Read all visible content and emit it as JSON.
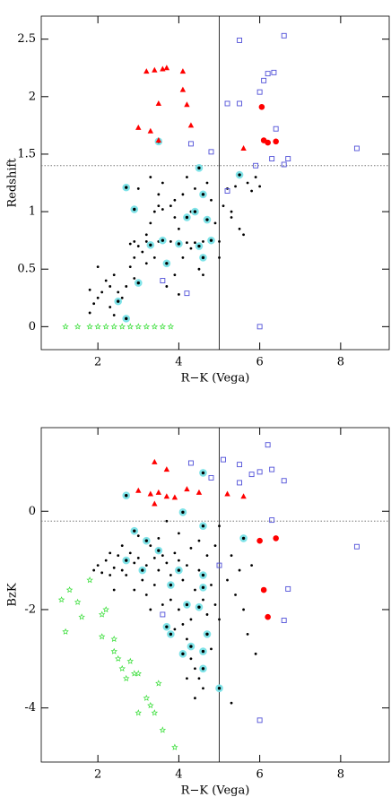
{
  "chart_data": [
    {
      "type": "scatter",
      "xlabel": "R−K (Vega)",
      "ylabel": "Redshift",
      "xlim": [
        0.6,
        9.2
      ],
      "ylim": [
        -0.2,
        2.7
      ],
      "xticks": [
        2,
        4,
        6,
        8
      ],
      "yticks": [
        0,
        0.5,
        1,
        1.5,
        2,
        2.5
      ],
      "vline": 5,
      "hline": 1.4,
      "series": [
        {
          "marker": "dot",
          "color": "#000000",
          "x": [
            1.8,
            1.9,
            2.0,
            2.1,
            1.8,
            2.2,
            2.3,
            2.0,
            2.4,
            2.5,
            2.6,
            2.3,
            2.8,
            2.9,
            3.0,
            2.8,
            3.1,
            3.2,
            3.3,
            3.4,
            3.5,
            3.6,
            3.8,
            3.9,
            3.0,
            3.3,
            3.6,
            4.0,
            4.2,
            4.4,
            4.6,
            4.8,
            5.0,
            3.8,
            3.5,
            3.2,
            2.9,
            4.3,
            4.1,
            3.9,
            4.5,
            3.7,
            4.2,
            4.4,
            4.8,
            5.1,
            5.3,
            5.5,
            5.6,
            5.2,
            5.4,
            5.7,
            5.9,
            6.0,
            5.8,
            5.3,
            4.9,
            4.7,
            4.3,
            3.2,
            2.7,
            2.4,
            2.9,
            3.4,
            4.0,
            4.6,
            5.0,
            3.9,
            4.1,
            3.5
          ],
          "y": [
            0.12,
            0.2,
            0.25,
            0.3,
            0.32,
            0.4,
            0.35,
            0.52,
            0.45,
            0.3,
            0.25,
            0.17,
            0.52,
            0.6,
            0.7,
            0.72,
            0.65,
            0.8,
            0.9,
            1.0,
            1.05,
            1.02,
            1.05,
            1.1,
            1.2,
            1.3,
            1.25,
            0.85,
            0.73,
            0.73,
            0.74,
            0.73,
            0.74,
            0.74,
            0.74,
            0.74,
            0.74,
            0.68,
            0.6,
            0.45,
            0.5,
            0.35,
            1.3,
            1.2,
            1.1,
            1.05,
            0.95,
            0.85,
            0.8,
            1.2,
            1.22,
            1.25,
            1.3,
            1.22,
            1.18,
            1.0,
            0.9,
            1.25,
            1.0,
            0.55,
            0.35,
            0.1,
            0.42,
            0.6,
            0.28,
            0.45,
            0.6,
            0.95,
            1.15,
            1.15
          ]
        },
        {
          "marker": "ring",
          "color": "#7fe3e8",
          "x": [
            2.7,
            2.9,
            3.5,
            4.5,
            5.5,
            4.6,
            4.4,
            4.2,
            4.7,
            3.6,
            3.3,
            4.0,
            4.8,
            3.7,
            4.6,
            2.5,
            2.7,
            3.0,
            4.5
          ],
          "y": [
            1.21,
            1.02,
            1.61,
            1.38,
            1.32,
            1.15,
            1.0,
            0.95,
            0.93,
            0.75,
            0.71,
            0.72,
            0.75,
            0.55,
            0.6,
            0.22,
            0.07,
            0.38,
            0.7
          ]
        },
        {
          "marker": "triangle",
          "color": "#ff0000",
          "x": [
            3.2,
            3.4,
            3.6,
            3.7,
            4.1,
            4.1,
            4.2,
            3.5,
            3.0,
            3.3,
            3.5,
            4.3,
            5.6
          ],
          "y": [
            2.22,
            2.23,
            2.24,
            2.25,
            2.22,
            2.06,
            1.93,
            1.94,
            1.73,
            1.7,
            1.62,
            1.75,
            1.55
          ]
        },
        {
          "marker": "circle",
          "color": "#ff0000",
          "x": [
            6.05,
            6.1,
            6.2,
            6.4
          ],
          "y": [
            1.91,
            1.62,
            1.6,
            1.61
          ]
        },
        {
          "marker": "square",
          "color": "#5050d8",
          "x": [
            5.5,
            6.6,
            6.0,
            6.2,
            6.35,
            6.1,
            5.2,
            5.5,
            6.4,
            4.3,
            4.8,
            5.9,
            6.3,
            6.6,
            6.7,
            8.4,
            5.2,
            4.2,
            3.6,
            6.0
          ],
          "y": [
            2.49,
            2.53,
            2.04,
            2.2,
            2.21,
            2.14,
            1.94,
            1.94,
            1.72,
            1.59,
            1.52,
            1.4,
            1.46,
            1.41,
            1.46,
            1.55,
            1.18,
            0.29,
            0.4,
            0.0
          ]
        },
        {
          "marker": "star",
          "color": "#33dd33",
          "x": [
            1.2,
            1.5,
            1.8,
            2.0,
            2.2,
            2.4,
            2.6,
            2.8,
            3.0,
            3.2,
            3.4,
            3.6,
            3.8
          ],
          "y": [
            0,
            0,
            0,
            0,
            0,
            0,
            0,
            0,
            0,
            0,
            0,
            0,
            0
          ]
        }
      ]
    },
    {
      "type": "scatter",
      "xlabel": "R−K (Vega)",
      "ylabel": "BzK",
      "xlim": [
        0.6,
        9.2
      ],
      "ylim": [
        -5.1,
        1.7
      ],
      "xticks": [
        2,
        4,
        6,
        8
      ],
      "yticks": [
        -4,
        -2,
        0
      ],
      "vline": 5,
      "hline": -0.2,
      "series": [
        {
          "marker": "dot",
          "color": "#000000",
          "x": [
            1.9,
            2.0,
            2.1,
            2.2,
            2.3,
            2.4,
            2.5,
            2.6,
            2.7,
            2.8,
            2.9,
            3.0,
            3.1,
            3.2,
            3.3,
            3.4,
            3.5,
            3.6,
            3.7,
            3.8,
            3.9,
            4.0,
            4.1,
            4.2,
            4.3,
            4.4,
            4.5,
            4.7,
            4.8,
            4.9,
            5.0,
            5.2,
            5.3,
            5.4,
            5.5,
            5.6,
            5.7,
            5.8,
            5.9,
            5.3,
            4.0,
            4.1,
            4.2,
            4.3,
            4.4,
            4.5,
            4.6,
            4.2,
            4.4,
            4.3,
            3.8,
            3.6,
            3.9,
            4.7,
            4.8,
            3.4,
            3.2,
            2.9,
            2.6,
            2.4,
            3.0,
            3.5,
            4.0,
            4.5,
            4.9,
            5.0,
            3.7,
            2.3,
            4.6,
            3.3
          ],
          "y": [
            -1.2,
            -1.1,
            -1.25,
            -1.0,
            -1.3,
            -1.15,
            -0.9,
            -1.2,
            -1.3,
            -0.85,
            -1.05,
            -0.95,
            -1.4,
            -1.1,
            -0.7,
            -0.95,
            -1.2,
            -0.9,
            -1.05,
            -1.3,
            -0.85,
            -1.0,
            -1.4,
            -1.1,
            -0.75,
            -1.6,
            -1.2,
            -0.9,
            -1.5,
            -1.9,
            -2.2,
            -1.4,
            -0.9,
            -1.7,
            -1.2,
            -2.0,
            -2.5,
            -1.1,
            -2.9,
            -3.9,
            -2.0,
            -2.3,
            -2.6,
            -3.0,
            -3.2,
            -3.4,
            -3.6,
            -3.4,
            -3.8,
            -2.2,
            -1.8,
            -1.9,
            -2.4,
            -2.1,
            -2.8,
            -1.5,
            -1.7,
            -1.6,
            -0.7,
            -1.6,
            -0.5,
            -0.55,
            -0.45,
            -0.6,
            -0.7,
            -0.3,
            -0.2,
            -0.85,
            -1.8,
            -2.0
          ]
        },
        {
          "marker": "ring",
          "color": "#7fe3e8",
          "x": [
            2.7,
            4.6,
            4.1,
            4.6,
            2.9,
            3.2,
            3.5,
            2.7,
            3.1,
            4.0,
            4.6,
            5.6,
            3.8,
            4.6,
            4.2,
            4.5,
            3.7,
            3.8,
            4.7,
            4.3,
            4.6,
            4.1,
            5.0,
            4.6
          ],
          "y": [
            0.32,
            0.78,
            -0.02,
            -0.3,
            -0.4,
            -0.6,
            -0.8,
            -1.0,
            -1.2,
            -1.2,
            -1.3,
            -0.55,
            -1.5,
            -1.55,
            -1.9,
            -1.95,
            -2.35,
            -2.5,
            -2.5,
            -2.75,
            -2.85,
            -2.9,
            -3.6,
            -3.2
          ]
        },
        {
          "marker": "triangle",
          "color": "#ff0000",
          "x": [
            3.4,
            3.7,
            3.0,
            3.3,
            3.5,
            3.7,
            3.9,
            4.2,
            4.5,
            5.2,
            5.6,
            3.4
          ],
          "y": [
            1.0,
            0.85,
            0.42,
            0.35,
            0.38,
            0.3,
            0.28,
            0.45,
            0.38,
            0.35,
            0.3,
            0.15
          ]
        },
        {
          "marker": "circle",
          "color": "#ff0000",
          "x": [
            6.0,
            6.4,
            6.1,
            6.2
          ],
          "y": [
            -0.6,
            -0.55,
            -1.6,
            -2.15
          ]
        },
        {
          "marker": "square",
          "color": "#5050d8",
          "x": [
            5.1,
            6.2,
            5.5,
            6.0,
            6.3,
            6.6,
            5.8,
            4.3,
            4.8,
            5.5,
            6.3,
            5.0,
            6.7,
            6.6,
            3.6,
            6.0,
            8.4
          ],
          "y": [
            1.05,
            1.35,
            0.95,
            0.8,
            0.85,
            0.62,
            0.75,
            0.98,
            0.68,
            0.58,
            -0.18,
            -1.1,
            -1.58,
            -2.22,
            -2.1,
            -4.25,
            -0.72
          ]
        },
        {
          "marker": "star",
          "color": "#33dd33",
          "x": [
            1.1,
            1.3,
            1.2,
            1.5,
            1.6,
            1.8,
            2.1,
            2.2,
            2.1,
            2.4,
            2.4,
            2.5,
            2.8,
            2.9,
            3.0,
            2.7,
            3.2,
            3.3,
            3.0,
            3.4,
            3.6,
            3.9,
            2.6,
            3.5
          ],
          "y": [
            -1.8,
            -1.6,
            -2.45,
            -1.85,
            -2.15,
            -1.4,
            -2.1,
            -2.0,
            -2.55,
            -2.6,
            -2.85,
            -3.0,
            -3.05,
            -3.3,
            -3.3,
            -3.4,
            -3.8,
            -3.95,
            -4.1,
            -4.1,
            -4.45,
            -4.8,
            -3.2,
            -3.5
          ]
        }
      ]
    }
  ]
}
